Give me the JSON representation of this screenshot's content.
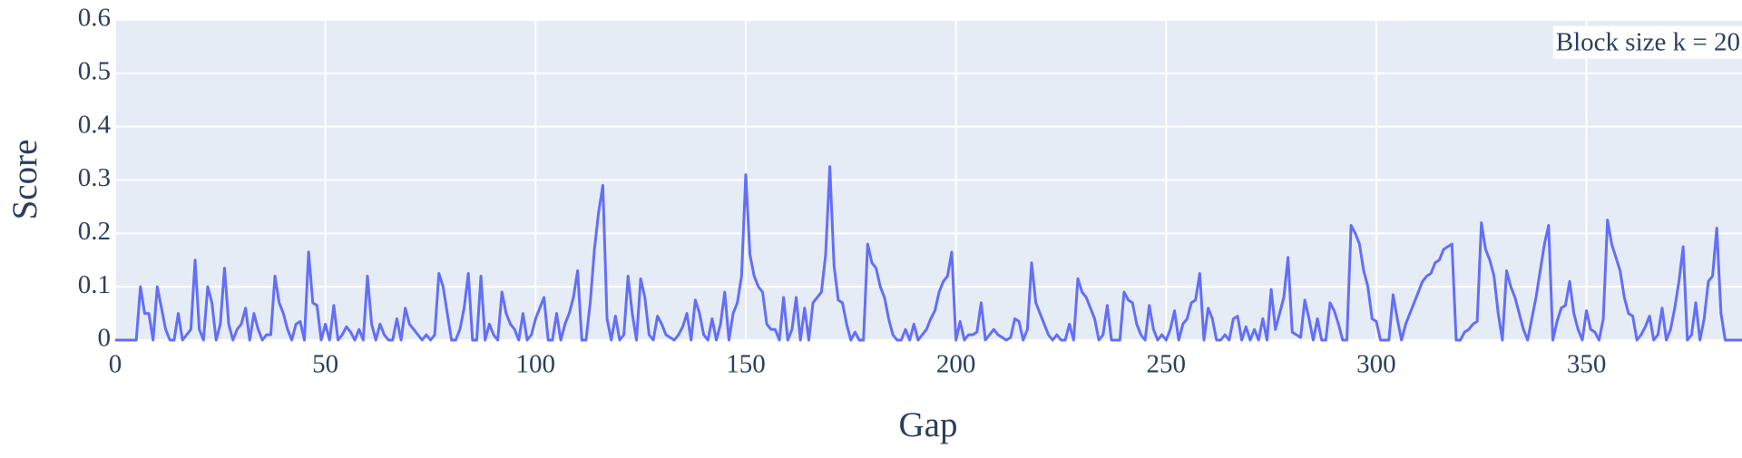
{
  "chart_data": {
    "type": "line",
    "annotation": "Block size k = 20",
    "x_label": "Gap",
    "y_label": "Score",
    "color": "#636efa",
    "grid": true,
    "xlim": [
      0,
      387
    ],
    "ylim": [
      0,
      0.6
    ],
    "xticks": [
      0,
      50,
      100,
      150,
      200,
      250,
      300,
      350
    ],
    "yticks": [
      0,
      0.1,
      0.2,
      0.3,
      0.4,
      0.5,
      0.6
    ],
    "x": [
      0,
      1,
      2,
      3,
      4,
      5,
      6,
      7,
      8,
      9,
      10,
      11,
      12,
      13,
      14,
      15,
      16,
      17,
      18,
      19,
      20,
      21,
      22,
      23,
      24,
      25,
      26,
      27,
      28,
      29,
      30,
      31,
      32,
      33,
      34,
      35,
      36,
      37,
      38,
      39,
      40,
      41,
      42,
      43,
      44,
      45,
      46,
      47,
      48,
      49,
      50,
      51,
      52,
      53,
      54,
      55,
      56,
      57,
      58,
      59,
      60,
      61,
      62,
      63,
      64,
      65,
      66,
      67,
      68,
      69,
      70,
      71,
      72,
      73,
      74,
      75,
      76,
      77,
      78,
      79,
      80,
      81,
      82,
      83,
      84,
      85,
      86,
      87,
      88,
      89,
      90,
      91,
      92,
      93,
      94,
      95,
      96,
      97,
      98,
      99,
      100,
      101,
      102,
      103,
      104,
      105,
      106,
      107,
      108,
      109,
      110,
      111,
      112,
      113,
      114,
      115,
      116,
      117,
      118,
      119,
      120,
      121,
      122,
      123,
      124,
      125,
      126,
      127,
      128,
      129,
      130,
      131,
      132,
      133,
      134,
      135,
      136,
      137,
      138,
      139,
      140,
      141,
      142,
      143,
      144,
      145,
      146,
      147,
      148,
      149,
      150,
      151,
      152,
      153,
      154,
      155,
      156,
      157,
      158,
      159,
      160,
      161,
      162,
      163,
      164,
      165,
      166,
      167,
      168,
      169,
      170,
      171,
      172,
      173,
      174,
      175,
      176,
      177,
      178,
      179,
      180,
      181,
      182,
      183,
      184,
      185,
      186,
      187,
      188,
      189,
      190,
      191,
      192,
      193,
      194,
      195,
      196,
      197,
      198,
      199,
      200,
      201,
      202,
      203,
      204,
      205,
      206,
      207,
      208,
      209,
      210,
      211,
      212,
      213,
      214,
      215,
      216,
      217,
      218,
      219,
      220,
      221,
      222,
      223,
      224,
      225,
      226,
      227,
      228,
      229,
      230,
      231,
      232,
      233,
      234,
      235,
      236,
      237,
      238,
      239,
      240,
      241,
      242,
      243,
      244,
      245,
      246,
      247,
      248,
      249,
      250,
      251,
      252,
      253,
      254,
      255,
      256,
      257,
      258,
      259,
      260,
      261,
      262,
      263,
      264,
      265,
      266,
      267,
      268,
      269,
      270,
      271,
      272,
      273,
      274,
      275,
      276,
      277,
      278,
      279,
      280,
      281,
      282,
      283,
      284,
      285,
      286,
      287,
      288,
      289,
      290,
      291,
      292,
      293,
      294,
      295,
      296,
      297,
      298,
      299,
      300,
      301,
      302,
      303,
      304,
      305,
      306,
      307,
      308,
      309,
      310,
      311,
      312,
      313,
      314,
      315,
      316,
      317,
      318,
      319,
      320,
      321,
      322,
      323,
      324,
      325,
      326,
      327,
      328,
      329,
      330,
      331,
      332,
      333,
      334,
      335,
      336,
      337,
      338,
      339,
      340,
      341,
      342,
      343,
      344,
      345,
      346,
      347,
      348,
      349,
      350,
      351,
      352,
      353,
      354,
      355,
      356,
      357,
      358,
      359,
      360,
      361,
      362,
      363,
      364,
      365,
      366,
      367,
      368,
      369,
      370,
      371,
      372,
      373,
      374,
      375,
      376,
      377,
      378,
      379,
      380,
      381,
      382,
      383,
      384,
      385,
      386,
      387
    ],
    "values": [
      0,
      0,
      0,
      0,
      0,
      0,
      0.1,
      0.05,
      0.05,
      0,
      0.1,
      0.06,
      0.02,
      0,
      0,
      0.05,
      0,
      0.01,
      0.02,
      0.15,
      0.02,
      0,
      0.1,
      0.07,
      0,
      0.03,
      0.135,
      0.03,
      0,
      0.02,
      0.03,
      0.06,
      0,
      0.05,
      0.02,
      0,
      0.01,
      0.01,
      0.12,
      0.07,
      0.05,
      0.02,
      0,
      0.03,
      0.035,
      0,
      0.165,
      0.07,
      0.065,
      0,
      0.03,
      0,
      0.065,
      0,
      0.01,
      0.025,
      0.015,
      0,
      0.02,
      0,
      0.12,
      0.03,
      0,
      0.03,
      0.01,
      0,
      0,
      0.04,
      0,
      0.06,
      0.03,
      0.02,
      0.01,
      0,
      0.01,
      0,
      0.01,
      0.125,
      0.1,
      0.05,
      0,
      0,
      0.02,
      0.06,
      0.125,
      0,
      0,
      0.12,
      0,
      0.03,
      0.01,
      0,
      0.09,
      0.05,
      0.03,
      0.02,
      0,
      0.05,
      0,
      0.01,
      0.04,
      0.06,
      0.08,
      0,
      0,
      0.05,
      0,
      0.03,
      0.05,
      0.08,
      0.13,
      0,
      0,
      0.07,
      0.17,
      0.24,
      0.29,
      0.04,
      0,
      0.045,
      0,
      0.01,
      0.12,
      0.05,
      0,
      0.115,
      0.08,
      0.01,
      0,
      0.045,
      0.03,
      0.01,
      0.005,
      0,
      0.01,
      0.025,
      0.05,
      0,
      0.075,
      0.05,
      0.01,
      0,
      0.04,
      0,
      0.03,
      0.09,
      0,
      0.05,
      0.07,
      0.12,
      0.31,
      0.16,
      0.12,
      0.1,
      0.09,
      0.03,
      0.02,
      0.02,
      0,
      0.08,
      0,
      0.02,
      0.08,
      0,
      0.06,
      0,
      0.07,
      0.08,
      0.09,
      0.16,
      0.325,
      0.14,
      0.075,
      0.07,
      0.03,
      0,
      0.015,
      0,
      0,
      0.18,
      0.145,
      0.135,
      0.1,
      0.08,
      0.04,
      0.01,
      0,
      0,
      0.02,
      0,
      0.03,
      0,
      0.01,
      0.02,
      0.04,
      0.055,
      0.09,
      0.11,
      0.12,
      0.165,
      0,
      0.035,
      0,
      0.01,
      0.01,
      0.015,
      0.07,
      0,
      0.01,
      0.02,
      0.01,
      0.005,
      0,
      0.005,
      0.04,
      0.035,
      0,
      0.02,
      0.145,
      0.07,
      0.05,
      0.03,
      0.01,
      0,
      0.01,
      0,
      0,
      0.03,
      0,
      0.115,
      0.09,
      0.08,
      0.06,
      0.04,
      0,
      0.01,
      0.065,
      0,
      0,
      0,
      0.09,
      0.075,
      0.07,
      0.03,
      0.01,
      0,
      0.065,
      0.02,
      0,
      0.01,
      0,
      0.02,
      0.055,
      0,
      0.03,
      0.04,
      0.07,
      0.075,
      0.125,
      0,
      0.06,
      0.04,
      0,
      0,
      0.01,
      0,
      0.04,
      0.045,
      0,
      0.025,
      0,
      0.02,
      0,
      0.04,
      0,
      0.095,
      0.02,
      0.05,
      0.08,
      0.155,
      0.015,
      0.01,
      0.005,
      0.075,
      0.04,
      0,
      0.04,
      0,
      0,
      0.07,
      0.055,
      0.03,
      0,
      0,
      0.215,
      0.2,
      0.18,
      0.13,
      0.1,
      0.04,
      0.035,
      0,
      0,
      0,
      0.085,
      0.04,
      0,
      0.03,
      0.05,
      0.07,
      0.09,
      0.11,
      0.12,
      0.125,
      0.145,
      0.15,
      0.17,
      0.175,
      0.18,
      0,
      0,
      0.015,
      0.02,
      0.03,
      0.035,
      0.22,
      0.17,
      0.15,
      0.12,
      0.05,
      0,
      0.13,
      0.1,
      0.08,
      0.05,
      0.02,
      0,
      0.04,
      0.08,
      0.13,
      0.18,
      0.215,
      0,
      0.035,
      0.06,
      0.065,
      0.11,
      0.05,
      0.02,
      0,
      0.055,
      0.02,
      0.015,
      0,
      0.04,
      0.225,
      0.18,
      0.155,
      0.13,
      0.08,
      0.05,
      0.045,
      0,
      0.01,
      0.025,
      0.045,
      0,
      0.01,
      0.06,
      0,
      0.02,
      0.06,
      0.11,
      0.175,
      0,
      0.01,
      0.07,
      0,
      0.04,
      0.11,
      0.12,
      0.21,
      0.05,
      0,
      0,
      0,
      0,
      0
    ]
  }
}
